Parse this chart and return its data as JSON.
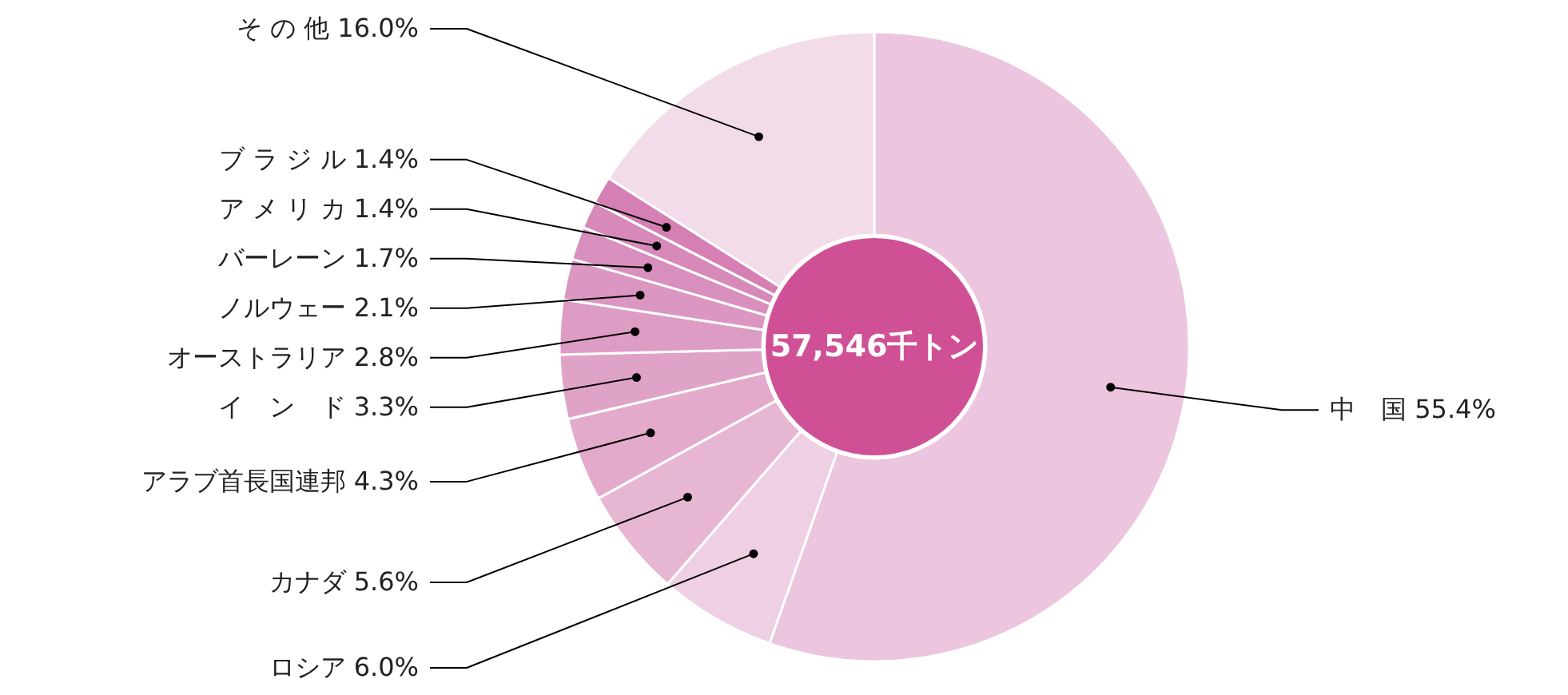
{
  "chart_data": {
    "type": "donut",
    "categories": [
      "中　国",
      "ロシア",
      "カナダ",
      "アラブ首長国連邦",
      "イ　ン　ド",
      "オーストラリア",
      "ノルウェー",
      "バーレーン",
      "ア メ リ カ",
      "ブ ラ ジ ル",
      "そ の 他"
    ],
    "values": [
      55.4,
      6.0,
      5.6,
      4.3,
      3.3,
      2.8,
      2.1,
      1.7,
      1.4,
      1.4,
      16.0
    ],
    "value_labels": [
      "55.4%",
      "6.0%",
      "5.6%",
      "4.3%",
      "3.3%",
      "2.8%",
      "2.1%",
      "1.7%",
      "1.4%",
      "1.4%",
      "16.0%"
    ],
    "colors": [
      "#ecc5de",
      "#eecfe3",
      "#e6b6d3",
      "#e3aacb",
      "#e0a3c8",
      "#dd9cc4",
      "#db96c1",
      "#d98fbd",
      "#d78aba",
      "#d57fb4",
      "#f3dcea"
    ],
    "data_labels": true,
    "annotations": [
      "57,546千トン"
    ]
  }
}
